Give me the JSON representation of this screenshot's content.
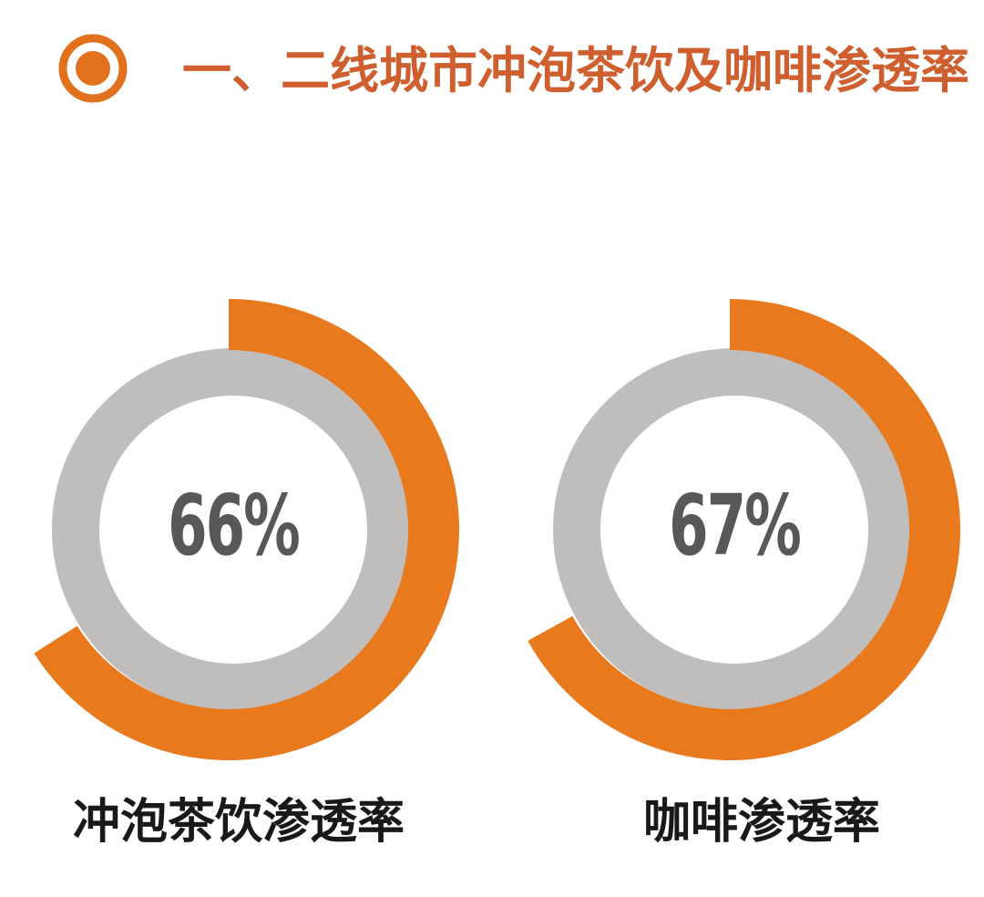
{
  "chart_data": {
    "type": "pie",
    "subtype": "donut-progress-pair",
    "title": "一、二线城市冲泡茶饮及咖啡渗透率",
    "legend": "none",
    "grid": "off",
    "charts": [
      {
        "label": "冲泡茶饮渗透率",
        "value_pct": 66,
        "display": "66%"
      },
      {
        "label": "咖啡渗透率",
        "value_pct": 67,
        "display": "67%"
      }
    ],
    "colors": {
      "arc_orange": "#e8791c",
      "ring_gray": "#bfbebd",
      "value_text": "#58585a",
      "label_text": "#191919",
      "title_text": "#cf5f2e",
      "icon_orange": "#e2711d",
      "background": "#ffffff"
    }
  }
}
